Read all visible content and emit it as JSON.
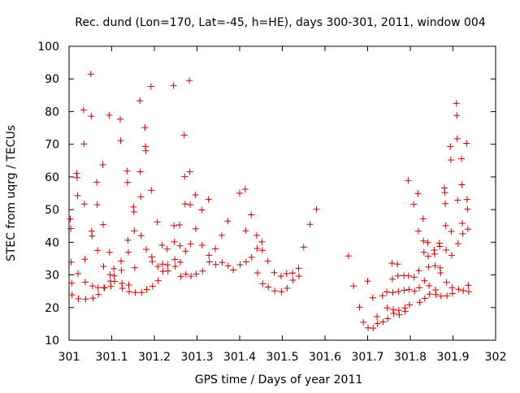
{
  "chart_data": {
    "type": "scatter",
    "title": "Rec. dund (Lon=170, Lat=-45, h=HE), days 300-301, 2011, window 004",
    "xlabel": "GPS time / Days of year 2011",
    "ylabel": "STEC from uqrg / TECUs",
    "xlim": [
      301,
      302
    ],
    "ylim": [
      10,
      100
    ],
    "xticks": [
      301,
      301.1,
      301.2,
      301.3,
      301.4,
      301.5,
      301.6,
      301.7,
      301.8,
      301.9,
      302
    ],
    "xtick_labels": [
      "301",
      "301.1",
      "301.2",
      "301.3",
      "301.4",
      "301.5",
      "301.6",
      "301.7",
      "301.8",
      "301.9",
      "302"
    ],
    "yticks": [
      10,
      20,
      30,
      40,
      50,
      60,
      70,
      80,
      90,
      100
    ],
    "ytick_labels": [
      "10",
      "20",
      "30",
      "40",
      "50",
      "60",
      "70",
      "80",
      "90",
      "100"
    ],
    "grid": false,
    "legend": "none",
    "marker": "plus",
    "color": "#cc0000",
    "points": [
      [
        301.003,
        47.1
      ],
      [
        301.004,
        44.2
      ],
      [
        301.005,
        33.9
      ],
      [
        301.006,
        27.5
      ],
      [
        301.007,
        23.9
      ],
      [
        301.018,
        61.1
      ],
      [
        301.019,
        59.8
      ],
      [
        301.02,
        54.3
      ],
      [
        301.021,
        30.4
      ],
      [
        301.022,
        22.7
      ],
      [
        301.034,
        80.5
      ],
      [
        301.035,
        70.1
      ],
      [
        301.036,
        51.7
      ],
      [
        301.037,
        34.8
      ],
      [
        301.038,
        27.8
      ],
      [
        301.039,
        22.6
      ],
      [
        301.051,
        91.5
      ],
      [
        301.052,
        78.6
      ],
      [
        301.053,
        43.4
      ],
      [
        301.054,
        41.9
      ],
      [
        301.055,
        26.6
      ],
      [
        301.056,
        22.9
      ],
      [
        301.065,
        58.4
      ],
      [
        301.066,
        51.5
      ],
      [
        301.067,
        37.5
      ],
      [
        301.068,
        26.1
      ],
      [
        301.069,
        24.0
      ],
      [
        301.079,
        63.7
      ],
      [
        301.08,
        45.4
      ],
      [
        301.081,
        32.6
      ],
      [
        301.082,
        26.1
      ],
      [
        301.083,
        26.0
      ],
      [
        301.094,
        78.9
      ],
      [
        301.095,
        36.9
      ],
      [
        301.096,
        30.1
      ],
      [
        301.097,
        28.1
      ],
      [
        301.098,
        26.5
      ],
      [
        301.105,
        31.9
      ],
      [
        301.106,
        29.7
      ],
      [
        301.107,
        28.0
      ],
      [
        301.12,
        77.7
      ],
      [
        301.121,
        71.1
      ],
      [
        301.122,
        34.2
      ],
      [
        301.123,
        31.4
      ],
      [
        301.124,
        27.4
      ],
      [
        301.125,
        25.9
      ],
      [
        301.136,
        61.8
      ],
      [
        301.137,
        58.3
      ],
      [
        301.138,
        40.6
      ],
      [
        301.139,
        36.9
      ],
      [
        301.14,
        26.9
      ],
      [
        301.141,
        24.9
      ],
      [
        301.151,
        50.8
      ],
      [
        301.152,
        49.3
      ],
      [
        301.153,
        43.5
      ],
      [
        301.154,
        32.2
      ],
      [
        301.155,
        24.6
      ],
      [
        301.166,
        83.3
      ],
      [
        301.167,
        61.6
      ],
      [
        301.168,
        53.9
      ],
      [
        301.169,
        42.0
      ],
      [
        301.17,
        24.6
      ],
      [
        301.178,
        75.1
      ],
      [
        301.179,
        69.3
      ],
      [
        301.18,
        68.0
      ],
      [
        301.181,
        37.8
      ],
      [
        301.182,
        25.5
      ],
      [
        301.192,
        87.7
      ],
      [
        301.193,
        55.9
      ],
      [
        301.194,
        35.5
      ],
      [
        301.195,
        34.1
      ],
      [
        301.196,
        26.5
      ],
      [
        301.207,
        46.2
      ],
      [
        301.208,
        32.6
      ],
      [
        301.209,
        28.2
      ],
      [
        301.218,
        39.1
      ],
      [
        301.219,
        33.3
      ],
      [
        301.22,
        31.1
      ],
      [
        301.23,
        37.9
      ],
      [
        301.231,
        33.1
      ],
      [
        301.232,
        31.2
      ],
      [
        301.245,
        88.0
      ],
      [
        301.246,
        45.1
      ],
      [
        301.247,
        40.1
      ],
      [
        301.248,
        34.7
      ],
      [
        301.249,
        32.6
      ],
      [
        301.259,
        45.3
      ],
      [
        301.26,
        38.9
      ],
      [
        301.261,
        33.9
      ],
      [
        301.262,
        29.5
      ],
      [
        301.27,
        72.8
      ],
      [
        301.271,
        60.1
      ],
      [
        301.272,
        51.7
      ],
      [
        301.273,
        37.3
      ],
      [
        301.274,
        30.2
      ],
      [
        301.282,
        89.5
      ],
      [
        301.283,
        61.6
      ],
      [
        301.284,
        51.5
      ],
      [
        301.285,
        39.5
      ],
      [
        301.286,
        29.6
      ],
      [
        301.296,
        54.5
      ],
      [
        301.297,
        44.1
      ],
      [
        301.298,
        30.3
      ],
      [
        301.311,
        49.9
      ],
      [
        301.312,
        39.1
      ],
      [
        301.313,
        31.2
      ],
      [
        301.327,
        53.1
      ],
      [
        301.328,
        36.0
      ],
      [
        301.329,
        34.0
      ],
      [
        301.343,
        38.0
      ],
      [
        301.344,
        33.2
      ],
      [
        301.358,
        42.1
      ],
      [
        301.359,
        33.8
      ],
      [
        301.372,
        46.5
      ],
      [
        301.373,
        32.8
      ],
      [
        301.385,
        31.5
      ],
      [
        301.4,
        55.0
      ],
      [
        301.401,
        33.1
      ],
      [
        301.413,
        56.2
      ],
      [
        301.414,
        43.5
      ],
      [
        301.415,
        34.0
      ],
      [
        301.427,
        48.4
      ],
      [
        301.428,
        35.4
      ],
      [
        301.44,
        42.1
      ],
      [
        301.441,
        38.1
      ],
      [
        301.442,
        30.6
      ],
      [
        301.452,
        40.1
      ],
      [
        301.453,
        37.5
      ],
      [
        301.454,
        27.3
      ],
      [
        301.466,
        34.2
      ],
      [
        301.467,
        26.3
      ],
      [
        301.481,
        30.7
      ],
      [
        301.482,
        25.1
      ],
      [
        301.497,
        29.6
      ],
      [
        301.498,
        24.9
      ],
      [
        301.51,
        30.4
      ],
      [
        301.511,
        25.9
      ],
      [
        301.524,
        30.6
      ],
      [
        301.525,
        28.4
      ],
      [
        301.538,
        32.0
      ],
      [
        301.539,
        29.6
      ],
      [
        301.55,
        38.5
      ],
      [
        301.565,
        45.5
      ],
      [
        301.58,
        50.1
      ],
      [
        301.655,
        35.8
      ],
      [
        301.667,
        26.6
      ],
      [
        301.681,
        20.1
      ],
      [
        301.69,
        15.5
      ],
      [
        301.7,
        28.1
      ],
      [
        301.701,
        13.8
      ],
      [
        301.712,
        23.0
      ],
      [
        301.713,
        13.7
      ],
      [
        301.722,
        17.2
      ],
      [
        301.723,
        15.1
      ],
      [
        301.735,
        23.6
      ],
      [
        301.736,
        15.6
      ],
      [
        301.745,
        24.8
      ],
      [
        301.746,
        19.9
      ],
      [
        301.747,
        16.6
      ],
      [
        301.757,
        33.6
      ],
      [
        301.758,
        28.7
      ],
      [
        301.759,
        24.6
      ],
      [
        301.76,
        19.4
      ],
      [
        301.761,
        18.2
      ],
      [
        301.77,
        33.3
      ],
      [
        301.771,
        29.7
      ],
      [
        301.772,
        24.9
      ],
      [
        301.773,
        19.2
      ],
      [
        301.774,
        17.8
      ],
      [
        301.785,
        29.8
      ],
      [
        301.786,
        25.3
      ],
      [
        301.787,
        19.9
      ],
      [
        301.788,
        18.8
      ],
      [
        301.795,
        58.9
      ],
      [
        301.796,
        29.7
      ],
      [
        301.797,
        25.5
      ],
      [
        301.798,
        20.8
      ],
      [
        301.808,
        51.6
      ],
      [
        301.809,
        29.3
      ],
      [
        301.81,
        25.0
      ],
      [
        301.818,
        54.9
      ],
      [
        301.819,
        43.4
      ],
      [
        301.82,
        31.3
      ],
      [
        301.821,
        26.1
      ],
      [
        301.822,
        21.6
      ],
      [
        301.83,
        47.2
      ],
      [
        301.831,
        40.4
      ],
      [
        301.832,
        36.9
      ],
      [
        301.833,
        28.2
      ],
      [
        301.834,
        22.8
      ],
      [
        301.841,
        39.9
      ],
      [
        301.842,
        35.7
      ],
      [
        301.843,
        32.4
      ],
      [
        301.844,
        26.7
      ],
      [
        301.845,
        24.1
      ],
      [
        301.856,
        37.6
      ],
      [
        301.857,
        36.4
      ],
      [
        301.858,
        32.8
      ],
      [
        301.859,
        25.4
      ],
      [
        301.86,
        24.0
      ],
      [
        301.868,
        39.7
      ],
      [
        301.869,
        38.7
      ],
      [
        301.87,
        32.2
      ],
      [
        301.871,
        30.6
      ],
      [
        301.872,
        23.5
      ],
      [
        301.88,
        56.6
      ],
      [
        301.881,
        55.2
      ],
      [
        301.882,
        51.8
      ],
      [
        301.883,
        45.1
      ],
      [
        301.884,
        37.6
      ],
      [
        301.885,
        27.7
      ],
      [
        301.886,
        23.6
      ],
      [
        301.894,
        69.3
      ],
      [
        301.895,
        65.2
      ],
      [
        301.896,
        43.3
      ],
      [
        301.897,
        36.0
      ],
      [
        301.898,
        26.1
      ],
      [
        301.899,
        24.3
      ],
      [
        301.908,
        82.5
      ],
      [
        301.909,
        78.8
      ],
      [
        301.91,
        71.7
      ],
      [
        301.911,
        52.9
      ],
      [
        301.912,
        39.6
      ],
      [
        301.913,
        25.6
      ],
      [
        301.92,
        65.6
      ],
      [
        301.921,
        57.6
      ],
      [
        301.922,
        45.8
      ],
      [
        301.923,
        42.6
      ],
      [
        301.924,
        25.2
      ],
      [
        301.932,
        70.3
      ],
      [
        301.933,
        53.1
      ],
      [
        301.934,
        50.1
      ],
      [
        301.935,
        44.0
      ],
      [
        301.936,
        26.8
      ],
      [
        301.937,
        24.9
      ]
    ]
  }
}
